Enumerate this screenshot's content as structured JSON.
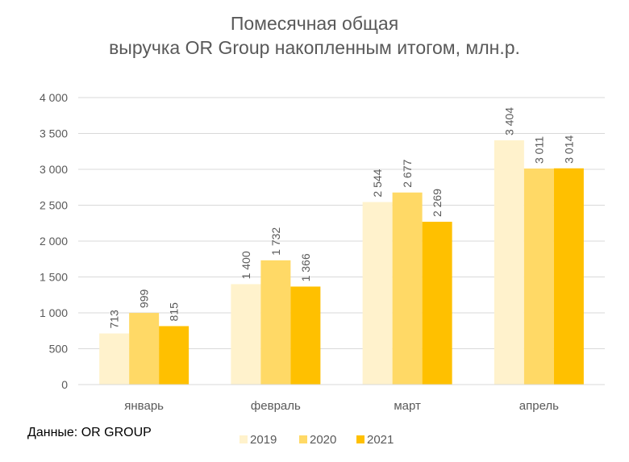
{
  "chart_data": {
    "type": "bar",
    "title": [
      "Помесячная общая",
      "выручка OR Group накопленным итогом, млн.р."
    ],
    "categories": [
      "январь",
      "февраль",
      "март",
      "апрель"
    ],
    "series": [
      {
        "name": "2019",
        "values": [
          713,
          1400,
          2544,
          3404
        ],
        "color": "#FFF2CC"
      },
      {
        "name": "2020",
        "values": [
          999,
          1732,
          2677,
          3011
        ],
        "color": "#FFD966"
      },
      {
        "name": "2021",
        "values": [
          815,
          1366,
          2269,
          3014
        ],
        "color": "#FFC000"
      }
    ],
    "data_labels": [
      [
        "713",
        "1 400",
        "2 544",
        "3 404"
      ],
      [
        "999",
        "1 732",
        "2 677",
        "3 011"
      ],
      [
        "815",
        "1 366",
        "2 269",
        "3 014"
      ]
    ],
    "ylim": [
      0,
      4000
    ],
    "yticks": [
      0,
      500,
      1000,
      1500,
      2000,
      2500,
      3000,
      3500,
      4000
    ],
    "ytick_labels": [
      "0",
      "500",
      "1 000",
      "1 500",
      "2 000",
      "2 500",
      "3 000",
      "3 500",
      "4 000"
    ],
    "grid": true,
    "legend_position": "bottom"
  },
  "source_note": "Данные: OR GROUP",
  "colors": {
    "grid": "#D9D9D9",
    "text": "#595959"
  }
}
